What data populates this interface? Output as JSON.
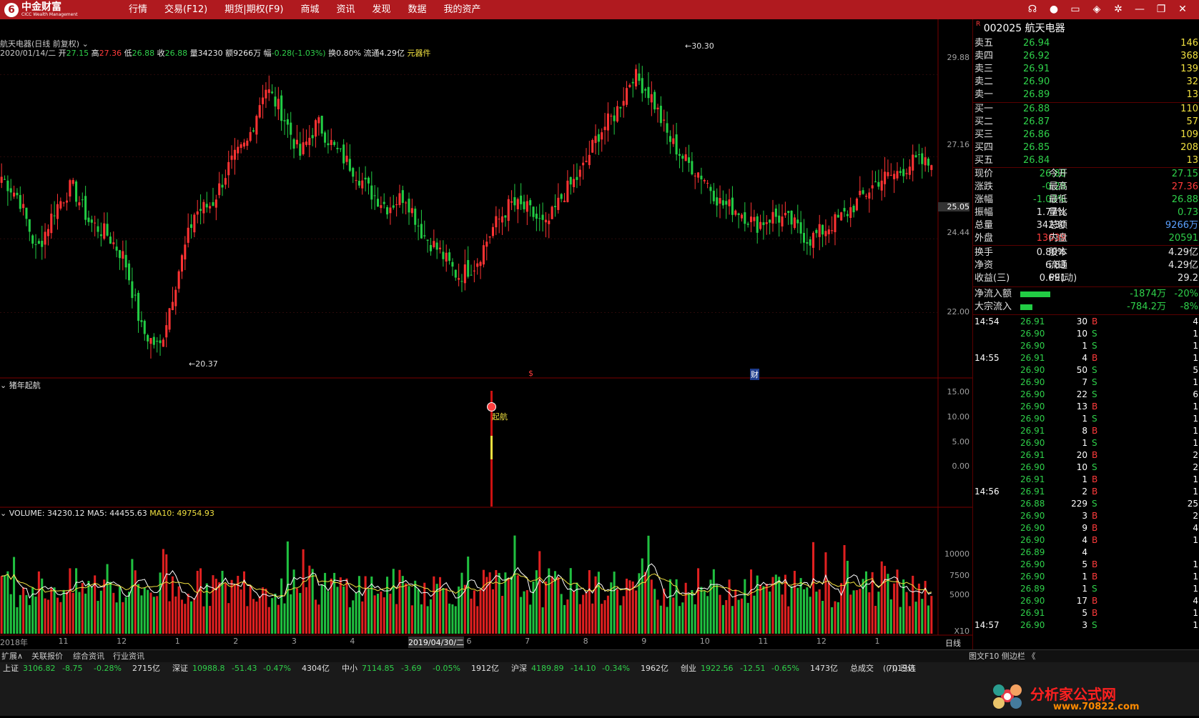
{
  "app": {
    "logo_glyph": "6",
    "logo_cn": "中金财富",
    "logo_en": "CICC Wealth Management"
  },
  "menu": [
    "行情",
    "交易(F12)",
    "期货|期权(F9)",
    "商城",
    "资讯",
    "发现",
    "数据",
    "我的资产"
  ],
  "window_icons": [
    "headset-icon",
    "user-icon",
    "message-icon",
    "box-icon",
    "gear-icon",
    "minimize-icon",
    "restore-icon",
    "close-icon"
  ],
  "chart_header": {
    "stock": "航天电器(日线 前复权)",
    "date": "2020/01/14/二",
    "open_label": "开",
    "open": "27.15",
    "high_label": "高",
    "high": "27.36",
    "low_label": "低",
    "low": "26.88",
    "close_label": "收",
    "close": "26.88",
    "vol_label": "量",
    "vol": "34230",
    "amt_label": "额",
    "amt": "9266万",
    "chg_label": "幅",
    "chg": "-0.28(-1.03%)",
    "turn_label": "换",
    "turn": "0.80%",
    "float_label": "流通",
    "float": "4.29亿",
    "sector": "元器件"
  },
  "price_axis": [
    "29.88",
    "27.16",
    "25.05",
    "24.44",
    "22.00"
  ],
  "high_marker": "30.30",
  "low_marker": "20.37",
  "event_markers": [
    "$",
    "财"
  ],
  "indicator": {
    "name": "猪年起航",
    "signal": "起航",
    "axis": [
      "15.00",
      "10.00",
      "5.00",
      "0.00"
    ]
  },
  "volume": {
    "label": "VOLUME: 34230.12",
    "ma5": "MA5: 44455.63",
    "ma10": "MA10: 49754.93",
    "axis": [
      "10000",
      "7500",
      "5000"
    ],
    "unit": "X10"
  },
  "x_axis": {
    "labels": [
      "2018年",
      "11",
      "12",
      "1",
      "2",
      "3",
      "4",
      "2019/04/30/二",
      "6",
      "7",
      "8",
      "9",
      "10",
      "11",
      "12",
      "1"
    ],
    "period": "日线"
  },
  "chart_data": {
    "type": "candlestick",
    "title": "航天电器(日线 前复权)",
    "x": [
      "2018年",
      "11",
      "12",
      "1",
      "2",
      "3",
      "4",
      "2019/04/30/二",
      "6",
      "7",
      "8",
      "9",
      "10",
      "11",
      "12",
      "1"
    ],
    "price_ticks": [
      29.88,
      27.16,
      25.05,
      24.44,
      22.0
    ],
    "close_path": [
      26.5,
      25.8,
      24.0,
      25.4,
      26.2,
      25.0,
      24.6,
      23.8,
      21.4,
      20.8,
      23.2,
      25.3,
      25.6,
      26.9,
      27.6,
      29.5,
      28.6,
      27.2,
      28.3,
      27.4,
      26.8,
      26.0,
      25.5,
      25.9,
      24.6,
      24.0,
      23.2,
      23.6,
      24.8,
      25.6,
      25.4,
      24.8,
      25.9,
      26.6,
      27.9,
      28.6,
      29.9,
      29.2,
      27.8,
      27.0,
      26.5,
      25.6,
      25.4,
      24.9,
      25.2,
      25.0,
      24.4,
      24.8,
      25.2,
      25.8,
      26.4,
      26.6,
      27.0,
      26.88
    ],
    "high": 30.3,
    "low": 20.37,
    "indicator_series": {
      "name": "猪年起航",
      "ticks": [
        15.0,
        10.0,
        5.0,
        0.0
      ]
    },
    "volume_ticks": [
      10000,
      7500,
      5000
    ],
    "volume_last": 34230.12,
    "ma5": 44455.63,
    "ma10": 49754.93
  },
  "quote": {
    "code": "002025",
    "name": "航天电器",
    "badge": "R",
    "sell": [
      {
        "label": "卖五",
        "price": "26.94",
        "vol": "146"
      },
      {
        "label": "卖四",
        "price": "26.92",
        "vol": "368"
      },
      {
        "label": "卖三",
        "price": "26.91",
        "vol": "139"
      },
      {
        "label": "卖二",
        "price": "26.90",
        "vol": "32"
      },
      {
        "label": "卖一",
        "price": "26.89",
        "vol": "13"
      }
    ],
    "buy": [
      {
        "label": "买一",
        "price": "26.88",
        "vol": "110"
      },
      {
        "label": "买二",
        "price": "26.87",
        "vol": "57"
      },
      {
        "label": "买三",
        "price": "26.86",
        "vol": "109"
      },
      {
        "label": "买四",
        "price": "26.85",
        "vol": "208"
      },
      {
        "label": "买五",
        "price": "26.84",
        "vol": "13"
      }
    ],
    "stats": [
      {
        "l1": "现价",
        "v1": "26.88",
        "c1": "green",
        "l2": "今开",
        "v2": "27.15",
        "c2": "green"
      },
      {
        "l1": "涨跌",
        "v1": "-0.28",
        "c1": "green",
        "l2": "最高",
        "v2": "27.36",
        "c2": "red"
      },
      {
        "l1": "涨幅",
        "v1": "-1.03%",
        "c1": "green",
        "l2": "最低",
        "v2": "26.88",
        "c2": "green"
      },
      {
        "l1": "振幅",
        "v1": "1.77%",
        "c1": "white",
        "l2": "量比",
        "v2": "0.73",
        "c2": "green"
      },
      {
        "l1": "总量",
        "v1": "34230",
        "c1": "white",
        "l2": "总额",
        "v2": "9266万",
        "c2": "blue"
      },
      {
        "l1": "外盘",
        "v1": "13639",
        "c1": "red",
        "l2": "内盘",
        "v2": "20591",
        "c2": "green"
      },
      {
        "l1": "换手",
        "v1": "0.80%",
        "c1": "white",
        "l2": "股本",
        "v2": "4.29亿",
        "c2": "white"
      },
      {
        "l1": "净资",
        "v1": "6.83",
        "c1": "white",
        "l2": "流通",
        "v2": "4.29亿",
        "c2": "white"
      },
      {
        "l1": "收益(三)",
        "v1": "0.691",
        "c1": "white",
        "l2": "PE(动)",
        "v2": "29.2",
        "c2": "white"
      }
    ],
    "flows": [
      {
        "label": "净流入额",
        "val": "-1874万",
        "pct": "-20%"
      },
      {
        "label": "大宗流入",
        "val": "-784.2万",
        "pct": "-8%"
      }
    ],
    "ticks": [
      {
        "t": "14:54",
        "p": "26.91",
        "v": "30",
        "s": "B",
        "n": "4"
      },
      {
        "t": "",
        "p": "26.90",
        "v": "10",
        "s": "S",
        "n": "1"
      },
      {
        "t": "",
        "p": "26.90",
        "v": "1",
        "s": "S",
        "n": "1"
      },
      {
        "t": "14:55",
        "p": "26.91",
        "v": "4",
        "s": "B",
        "n": "1"
      },
      {
        "t": "",
        "p": "26.90",
        "v": "50",
        "s": "S",
        "n": "5"
      },
      {
        "t": "",
        "p": "26.90",
        "v": "7",
        "s": "S",
        "n": "1"
      },
      {
        "t": "",
        "p": "26.90",
        "v": "22",
        "s": "S",
        "n": "6"
      },
      {
        "t": "",
        "p": "26.90",
        "v": "13",
        "s": "B",
        "n": "1"
      },
      {
        "t": "",
        "p": "26.90",
        "v": "1",
        "s": "S",
        "n": "1"
      },
      {
        "t": "",
        "p": "26.91",
        "v": "8",
        "s": "B",
        "n": "1"
      },
      {
        "t": "",
        "p": "26.90",
        "v": "1",
        "s": "S",
        "n": "1"
      },
      {
        "t": "",
        "p": "26.91",
        "v": "20",
        "s": "B",
        "n": "2"
      },
      {
        "t": "",
        "p": "26.90",
        "v": "10",
        "s": "S",
        "n": "2"
      },
      {
        "t": "",
        "p": "26.91",
        "v": "1",
        "s": "B",
        "n": "1"
      },
      {
        "t": "14:56",
        "p": "26.91",
        "v": "2",
        "s": "B",
        "n": "1"
      },
      {
        "t": "",
        "p": "26.88",
        "v": "229",
        "s": "S",
        "n": "25"
      },
      {
        "t": "",
        "p": "26.90",
        "v": "3",
        "s": "B",
        "n": "2"
      },
      {
        "t": "",
        "p": "26.90",
        "v": "9",
        "s": "B",
        "n": "4"
      },
      {
        "t": "",
        "p": "26.90",
        "v": "4",
        "s": "B",
        "n": "1"
      },
      {
        "t": "",
        "p": "26.89",
        "v": "4",
        "s": "",
        "n": ""
      },
      {
        "t": "",
        "p": "26.90",
        "v": "5",
        "s": "B",
        "n": "1"
      },
      {
        "t": "",
        "p": "26.90",
        "v": "1",
        "s": "B",
        "n": "1"
      },
      {
        "t": "",
        "p": "26.89",
        "v": "1",
        "s": "S",
        "n": "1"
      },
      {
        "t": "",
        "p": "26.90",
        "v": "17",
        "s": "B",
        "n": "4"
      },
      {
        "t": "",
        "p": "26.91",
        "v": "5",
        "s": "B",
        "n": "1"
      },
      {
        "t": "14:57",
        "p": "26.90",
        "v": "3",
        "s": "S",
        "n": "1"
      }
    ]
  },
  "bottom_tabs": [
    "扩展∧",
    "关联报价",
    "综合资讯",
    "行业资讯"
  ],
  "f10_tab": "图文F10 侧边栏 《",
  "status": [
    {
      "name": "上证",
      "val": "3106.82",
      "chg": "-8.75",
      "pct": "-0.28%",
      "amt": "2715亿"
    },
    {
      "name": "深证",
      "val": "10988.8",
      "chg": "-51.43",
      "pct": "-0.47%",
      "amt": "4304亿"
    },
    {
      "name": "中小",
      "val": "7114.85",
      "chg": "-3.69",
      "pct": "-0.05%",
      "amt": "1912亿"
    },
    {
      "name": "沪深",
      "val": "4189.89",
      "chg": "-14.10",
      "pct": "-0.34%",
      "amt": "1962亿"
    },
    {
      "name": "创业",
      "val": "1922.56",
      "chg": "-12.51",
      "pct": "-0.65%",
      "amt": "1473亿"
    }
  ],
  "total_label": "总成交",
  "total_val": "7019亿",
  "connected": "已连",
  "watermark": {
    "text": "分析家公式网",
    "url": "www.70822.com"
  }
}
